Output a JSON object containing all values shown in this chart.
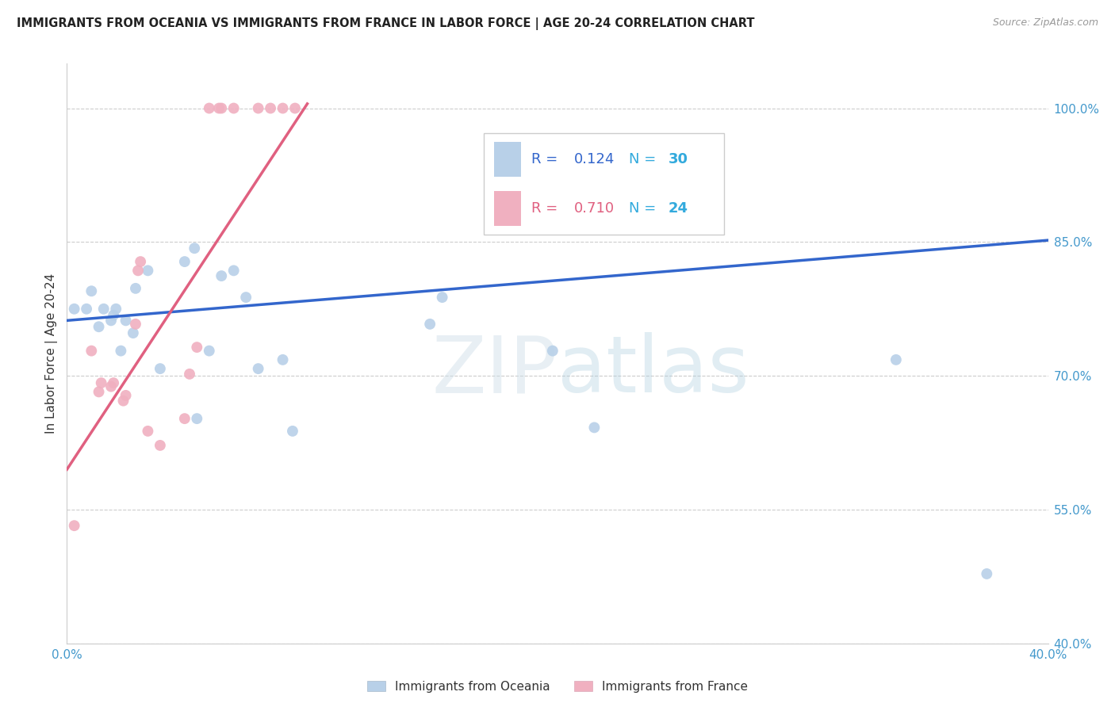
{
  "title": "IMMIGRANTS FROM OCEANIA VS IMMIGRANTS FROM FRANCE IN LABOR FORCE | AGE 20-24 CORRELATION CHART",
  "source": "Source: ZipAtlas.com",
  "ylabel": "In Labor Force | Age 20-24",
  "xlim": [
    0.0,
    0.4
  ],
  "ylim": [
    0.4,
    1.05
  ],
  "y_ticks_right": [
    0.4,
    0.55,
    0.7,
    0.85,
    1.0
  ],
  "y_tick_labels_right": [
    "40.0%",
    "55.0%",
    "70.0%",
    "85.0%",
    "100.0%"
  ],
  "oceania_R": "0.124",
  "oceania_N": "30",
  "france_R": "0.710",
  "france_N": "24",
  "oceania_color": "#b8d0e8",
  "france_color": "#f0b0c0",
  "oceania_line_color": "#3366cc",
  "france_line_color": "#e06080",
  "oceania_points_x": [
    0.003,
    0.008,
    0.01,
    0.013,
    0.015,
    0.018,
    0.019,
    0.02,
    0.022,
    0.024,
    0.027,
    0.028,
    0.033,
    0.038,
    0.048,
    0.052,
    0.053,
    0.058,
    0.063,
    0.068,
    0.073,
    0.078,
    0.088,
    0.092,
    0.148,
    0.153,
    0.198,
    0.215,
    0.338,
    0.375
  ],
  "oceania_points_y": [
    0.775,
    0.775,
    0.795,
    0.755,
    0.775,
    0.762,
    0.768,
    0.775,
    0.728,
    0.762,
    0.748,
    0.798,
    0.818,
    0.708,
    0.828,
    0.843,
    0.652,
    0.728,
    0.812,
    0.818,
    0.788,
    0.708,
    0.718,
    0.638,
    0.758,
    0.788,
    0.728,
    0.642,
    0.718,
    0.478
  ],
  "france_points_x": [
    0.003,
    0.01,
    0.013,
    0.014,
    0.018,
    0.019,
    0.023,
    0.024,
    0.028,
    0.029,
    0.03,
    0.033,
    0.038,
    0.048,
    0.05,
    0.053,
    0.058,
    0.062,
    0.063,
    0.068,
    0.078,
    0.083,
    0.088,
    0.093
  ],
  "france_points_y": [
    0.532,
    0.728,
    0.682,
    0.692,
    0.688,
    0.692,
    0.672,
    0.678,
    0.758,
    0.818,
    0.828,
    0.638,
    0.622,
    0.652,
    0.702,
    0.732,
    1.0,
    1.0,
    1.0,
    1.0,
    1.0,
    1.0,
    1.0,
    1.0
  ],
  "oceania_line_x": [
    0.0,
    0.4
  ],
  "oceania_line_y": [
    0.762,
    0.852
  ],
  "france_line_x": [
    0.0,
    0.098
  ],
  "france_line_y": [
    0.595,
    1.005
  ]
}
